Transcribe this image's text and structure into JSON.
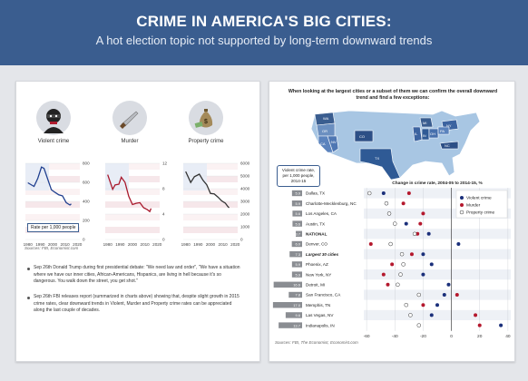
{
  "header": {
    "title": "CRIME IN AMERICA'S BIG CITIES:",
    "subtitle": "A hot election topic not supported by long-term downward trends"
  },
  "left": {
    "icons": [
      {
        "label": "Violent crime",
        "icon": "criminal-icon"
      },
      {
        "label": "Murder",
        "icon": "knife-icon"
      },
      {
        "label": "Property crime",
        "icon": "money-bag-icon"
      }
    ],
    "rate_note": "Rate per 1,000 people",
    "source": "Sources: FBI, Economist.com",
    "bullets": [
      {
        "date": "Sep 26th",
        "text": "Donald Trump during first presidential debate: \"We need law and order\", \"We have a situation where we have our inner cities, African-Americans, Hispanics, are living in hell because it's so dangerous. You walk down the street, you get shot.\""
      },
      {
        "date": "Sep 26th",
        "text": "FBI releases report (summarized in charts above) showing that, despite slight growth in 2015 crime rates, clear downward trends in Violent, Murder and Property crime rates can be appreciated along the last couple of decades."
      }
    ]
  },
  "right": {
    "map_title": "When looking at the largest cities or a subset of them we can confirm the overall downward trend and find a few exceptions:",
    "map_state_labels": [
      "WA",
      "OR",
      "CA",
      "NV",
      "CO",
      "TX",
      "IL",
      "OH",
      "PA",
      "MI",
      "NY",
      "NC",
      "IN"
    ],
    "callout": "Violent crime rate, per 1,000 people, 2014-15",
    "source": "Sources: FBI, The Economist, Economist.com"
  },
  "chart_data": [
    {
      "type": "line",
      "title": "Violent crime",
      "x": [
        1980,
        1985,
        1988,
        1991,
        1993,
        1996,
        1999,
        2002,
        2005,
        2008,
        2011,
        2014,
        2015
      ],
      "values": [
        595,
        557,
        640,
        760,
        747,
        636,
        523,
        494,
        469,
        458,
        387,
        362,
        373
      ],
      "xticks": [
        1980,
        1990,
        2000,
        2010,
        2020
      ],
      "yticks": [
        0,
        200,
        400,
        600,
        800
      ],
      "xlim": [
        1978,
        2022
      ],
      "ylim": [
        0,
        800
      ],
      "axis_side": "right",
      "color": "#1f3f8f"
    },
    {
      "type": "line",
      "title": "Murder",
      "x": [
        1980,
        1984,
        1986,
        1989,
        1991,
        1994,
        1997,
        2000,
        2003,
        2006,
        2009,
        2012,
        2014,
        2015
      ],
      "values": [
        10.2,
        7.9,
        8.6,
        8.7,
        9.8,
        9.0,
        6.8,
        5.5,
        5.7,
        5.8,
        5.0,
        4.7,
        4.4,
        4.9
      ],
      "xticks": [
        1980,
        1990,
        2000,
        2010,
        2020
      ],
      "yticks": [
        0,
        4,
        8,
        12
      ],
      "xlim": [
        1978,
        2022
      ],
      "ylim": [
        0,
        12
      ],
      "axis_side": "right",
      "color": "#a8182b"
    },
    {
      "type": "line",
      "title": "Property crime",
      "x": [
        1980,
        1984,
        1987,
        1991,
        1994,
        1997,
        2000,
        2003,
        2006,
        2009,
        2012,
        2014,
        2015
      ],
      "values": [
        5350,
        4490,
        4940,
        5140,
        4660,
        4310,
        3620,
        3590,
        3340,
        3040,
        2860,
        2600,
        2490
      ],
      "xticks": [
        1980,
        1990,
        2000,
        2010,
        2020
      ],
      "yticks": [
        0,
        1000,
        2000,
        3000,
        4000,
        5000,
        6000
      ],
      "xlim": [
        1978,
        2022
      ],
      "ylim": [
        0,
        6000
      ],
      "axis_side": "right",
      "color": "#333333"
    },
    {
      "type": "scatter",
      "title": "Change in crime rate, 2004-05 to 2014-15, %",
      "categories": [
        "Dallas, TX",
        "Charlotte-Mecklenburg, NC",
        "Los Angeles, CA",
        "Austin, TX",
        "NATIONAL",
        "Denver, CO",
        "Largest 30 cities",
        "Phoenix, AZ",
        "New York, NY",
        "Detroit, MI",
        "San Francisco, CA",
        "Memphis, TN",
        "Las Vegas, NV",
        "Indianapolis, IN"
      ],
      "violent_rates": [
        5.9,
        5.9,
        5.6,
        5.6,
        3.7,
        6.0,
        7.3,
        5.9,
        5.9,
        16.6,
        7.8,
        17.0,
        9.6,
        13.7
      ],
      "series": [
        {
          "name": "Violent crime",
          "values": [
            -48,
            -46,
            -44,
            -32,
            -16,
            5,
            -20,
            -14,
            -20,
            -2,
            -5,
            -10,
            -14,
            35
          ]
        },
        {
          "name": "Murder",
          "values": [
            -30,
            -34,
            -20,
            -22,
            -24,
            -57,
            -28,
            -42,
            -48,
            -45,
            4,
            -20,
            17,
            20
          ]
        },
        {
          "name": "Property crime",
          "values": [
            -58,
            -46,
            -44,
            -40,
            -26,
            -43,
            -35,
            -34,
            -36,
            -38,
            -23,
            -32,
            -29,
            -23
          ]
        }
      ],
      "series_colors": [
        "#1a2f7a",
        "#b4182d",
        "#ffffff"
      ],
      "xticks": [
        -60,
        -40,
        -20,
        0,
        20,
        40
      ],
      "xlim": [
        -62,
        42
      ],
      "legend": "top-right"
    }
  ]
}
